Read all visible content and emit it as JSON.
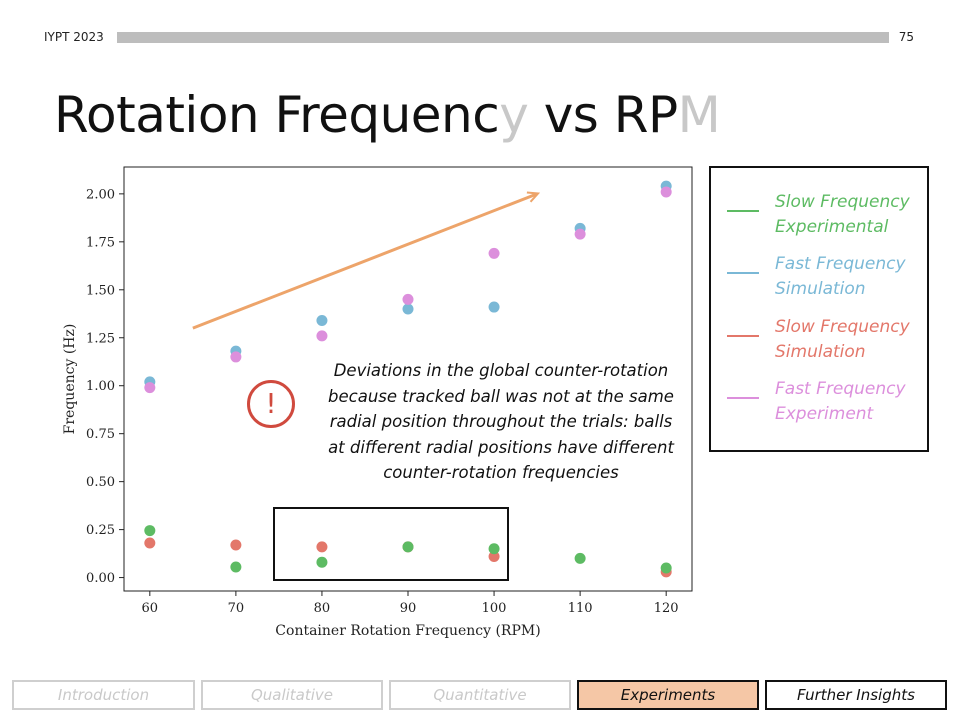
{
  "header": {
    "event": "IYPT 2023",
    "slide_number": "75"
  },
  "title": {
    "main": "Rotation Frequenc",
    "dim": "y",
    "rest": " vs RP",
    "dim2": "M"
  },
  "legend": [
    {
      "label": "Slow Frequency Experimental",
      "color": "#5dbb63"
    },
    {
      "label": "Fast Frequency Simulation",
      "color": "#7ab8d6"
    },
    {
      "label": "Slow Frequency Simulation",
      "color": "#e3776a"
    },
    {
      "label": "Fast Frequency Experiment",
      "color": "#dc8fdc"
    }
  ],
  "note": "Deviations in the global counter-rotation because tracked ball was not at the same radial position throughout the trials: balls at different radial positions have different counter-rotation frequencies",
  "warning_symbol": "!",
  "arrow_color": "#eda46a",
  "nav": [
    {
      "label": "Introduction",
      "state": "inactive"
    },
    {
      "label": "Qualitative",
      "state": "inactive"
    },
    {
      "label": "Quantitative",
      "state": "inactive"
    },
    {
      "label": "Experiments",
      "state": "active"
    },
    {
      "label": "Further Insights",
      "state": "next"
    }
  ],
  "chart_data": {
    "type": "scatter",
    "xlabel": "Container Rotation Frequency (RPM)",
    "ylabel": "Frequency (Hz)",
    "xlim": [
      57,
      123
    ],
    "ylim": [
      -0.07,
      2.14
    ],
    "x_ticks": [
      "60",
      "70",
      "80",
      "90",
      "100",
      "110",
      "120"
    ],
    "y_ticks": [
      "0.00",
      "0.25",
      "0.50",
      "0.75",
      "1.00",
      "1.25",
      "1.50",
      "1.75",
      "2.00"
    ],
    "grid": false,
    "series": [
      {
        "name": "Slow Frequency Simulation",
        "color": "#e3776a",
        "points": [
          [
            60,
            0.18
          ],
          [
            70,
            0.17
          ],
          [
            80,
            0.16
          ],
          [
            90,
            0.16
          ],
          [
            100,
            0.11
          ],
          [
            120,
            0.03
          ]
        ]
      },
      {
        "name": "Slow Frequency Experimental",
        "color": "#5dbb63",
        "points": [
          [
            60,
            0.245
          ],
          [
            70,
            0.055
          ],
          [
            80,
            0.08
          ],
          [
            90,
            0.16
          ],
          [
            100,
            0.15
          ],
          [
            110,
            0.1
          ],
          [
            120,
            0.05
          ]
        ]
      },
      {
        "name": "Fast Frequency Simulation",
        "color": "#7ab8d6",
        "points": [
          [
            60,
            1.02
          ],
          [
            70,
            1.18
          ],
          [
            80,
            1.34
          ],
          [
            90,
            1.4
          ],
          [
            100,
            1.41
          ],
          [
            110,
            1.82
          ],
          [
            120,
            2.04
          ]
        ]
      },
      {
        "name": "Fast Frequency Experiment",
        "color": "#dc8fdc",
        "points": [
          [
            60,
            0.99
          ],
          [
            70,
            1.15
          ],
          [
            80,
            1.26
          ],
          [
            90,
            1.45
          ],
          [
            100,
            1.69
          ],
          [
            110,
            1.79
          ],
          [
            120,
            2.01
          ]
        ]
      }
    ],
    "arrow": {
      "from": [
        65,
        1.3
      ],
      "to": [
        105,
        2.0
      ]
    }
  }
}
